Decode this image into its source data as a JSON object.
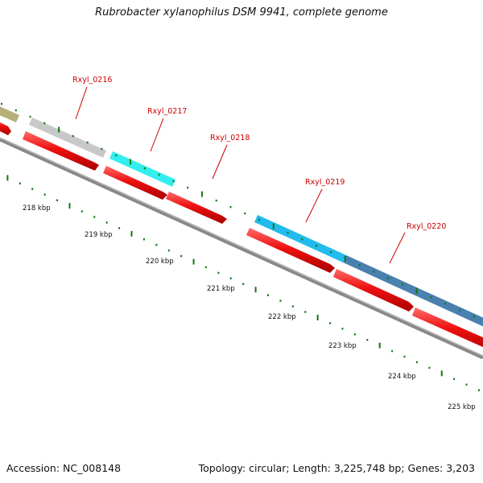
{
  "title": "Rubrobacter xylanophilus DSM 9941, complete genome",
  "footer": {
    "accession": "Accession: NC_008148",
    "summary": "Topology: circular; Length: 3,225,748 bp; Genes: 3,203"
  },
  "scale": {
    "ticks": [
      "218 kbp",
      "219 kbp",
      "220 kbp",
      "221 kbp",
      "222 kbp",
      "223 kbp",
      "224 kbp",
      "225 kbp"
    ]
  },
  "genes": [
    {
      "label": "Rxyl_0216",
      "color": "#c8c8c8"
    },
    {
      "label": "Rxyl_0217",
      "color": "#33eeee"
    },
    {
      "label": "Rxyl_0218",
      "color": ""
    },
    {
      "label": "Rxyl_0219",
      "color": "#22bbee"
    },
    {
      "label": "Rxyl_0220",
      "color": "#4a80b0"
    }
  ],
  "colors": {
    "cds": "#ee1111",
    "backbone": "#777777",
    "tick": "#117711",
    "label": "#cc0000",
    "prev_gene": "#b5b07a"
  }
}
